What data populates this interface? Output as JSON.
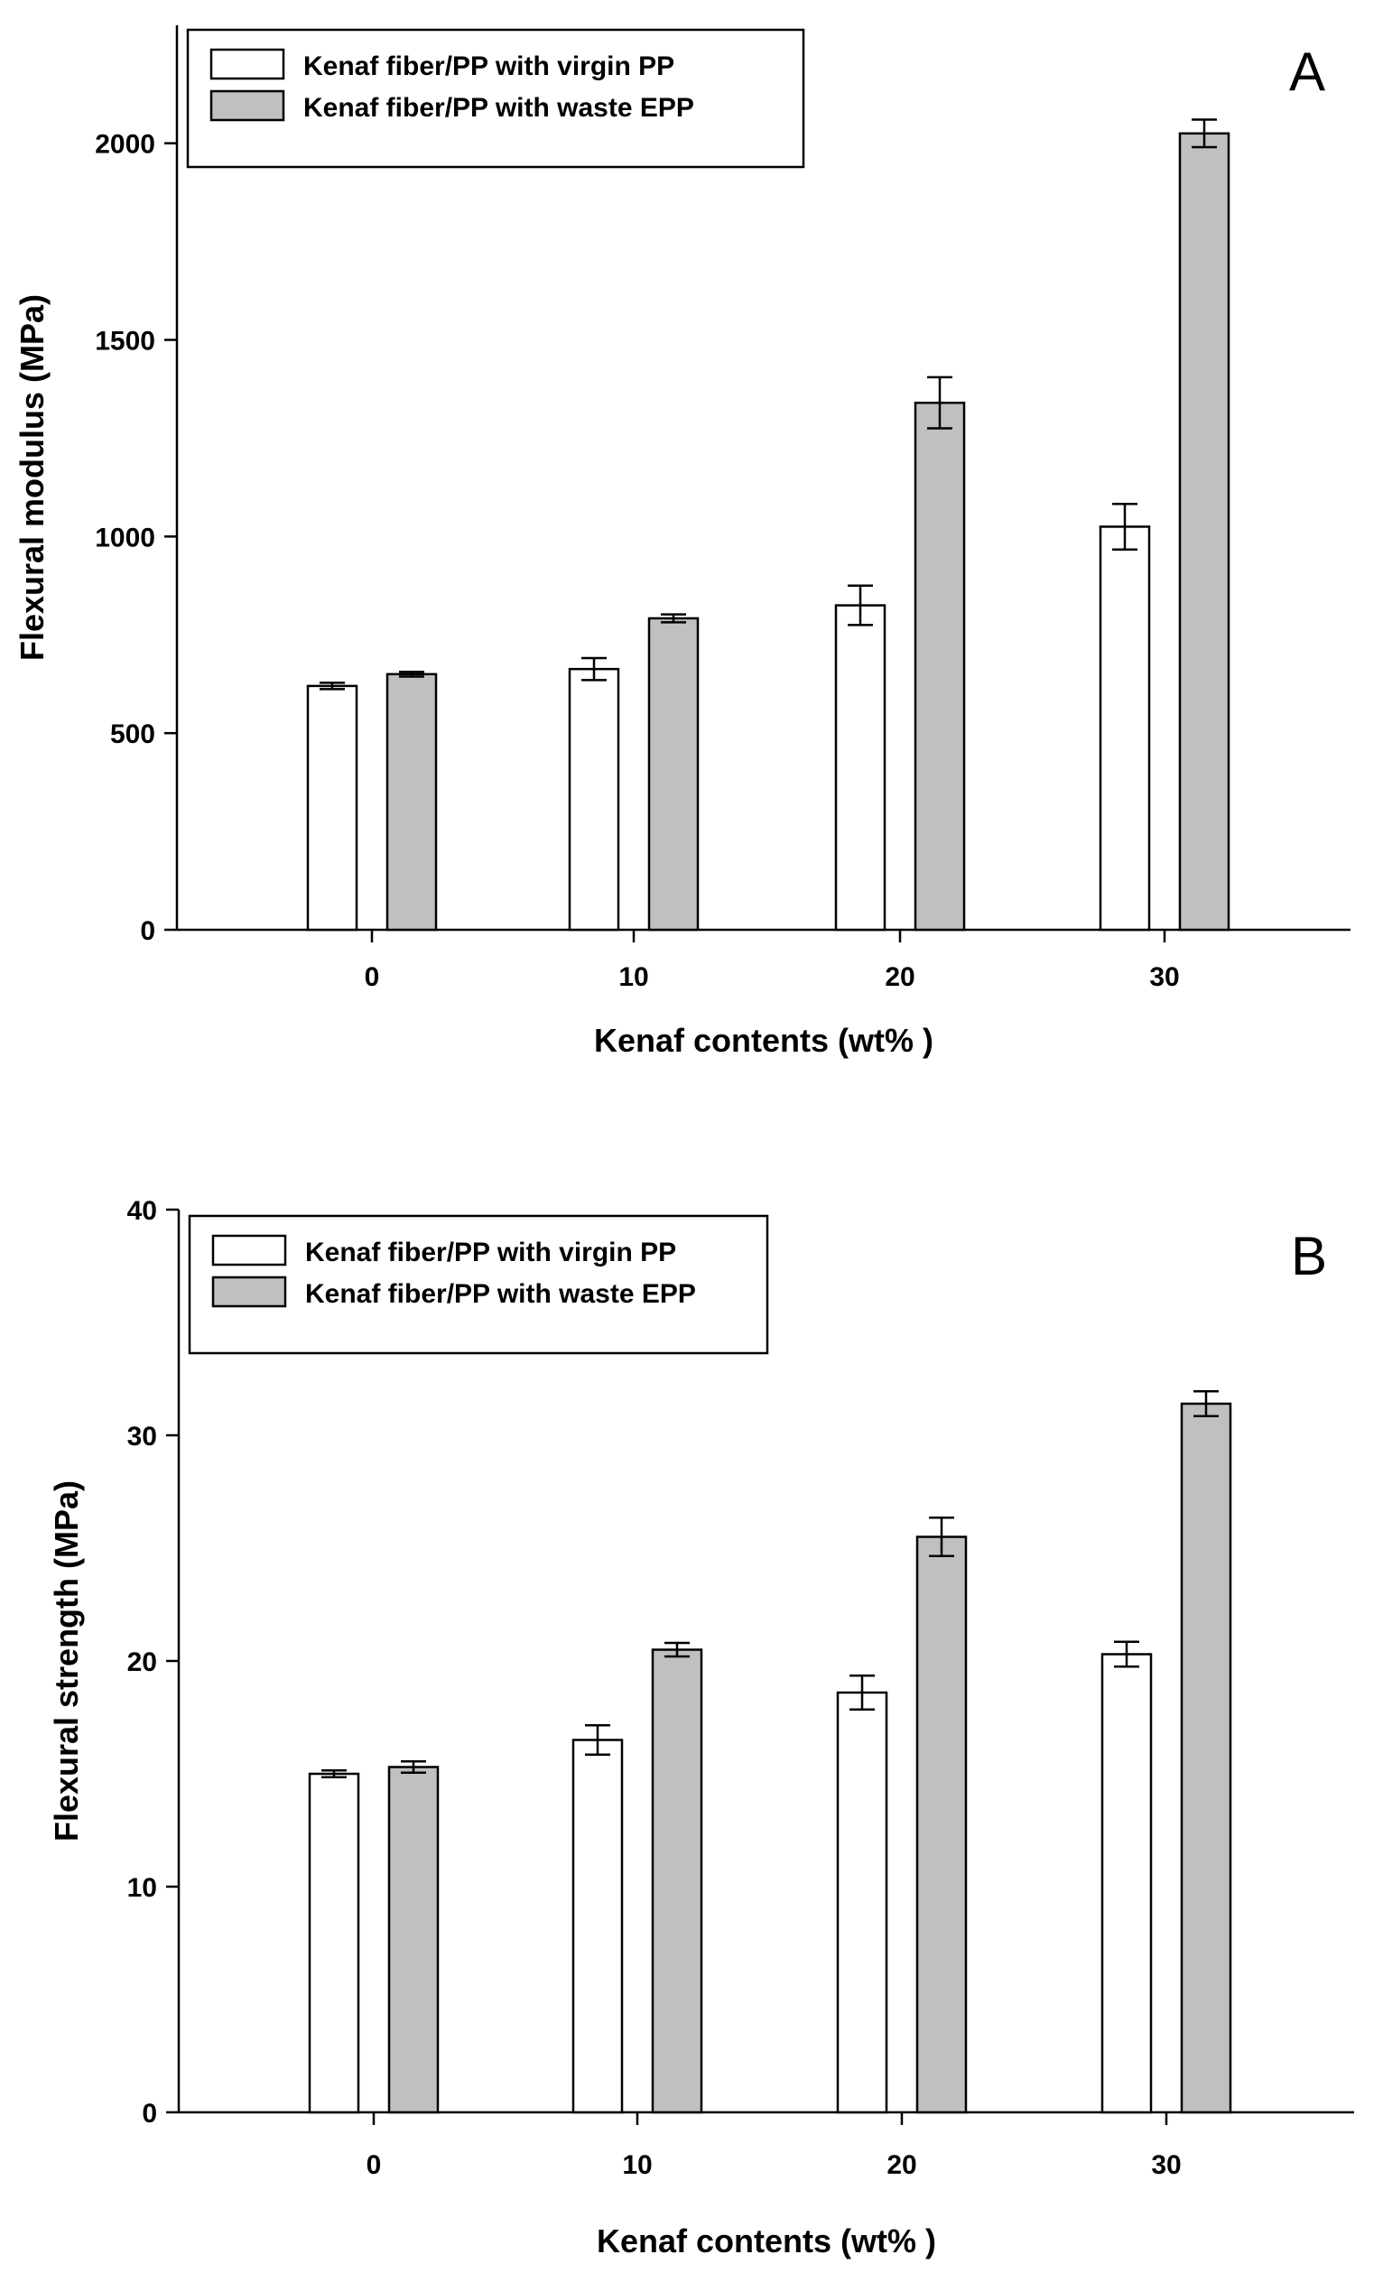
{
  "chart_data": [
    {
      "type": "bar",
      "panel_label": "A",
      "categories": [
        "0",
        "10",
        "20",
        "30"
      ],
      "xlabel": "Kenaf contents (wt% )",
      "ylabel": "Flexural modulus (MPa)",
      "ylim": [
        0,
        2300
      ],
      "yticks": [
        "0",
        "500",
        "1000",
        "1500",
        "2000"
      ],
      "ytick_values": [
        0,
        500,
        1000,
        1500,
        2000
      ],
      "legend_position": "top-left",
      "series": [
        {
          "name": "Kenaf fiber/PP with virgin PP",
          "color": "#ffffff",
          "values": [
            620,
            663,
            825,
            1025
          ],
          "errors": [
            8,
            28,
            50,
            58
          ]
        },
        {
          "name": "Kenaf fiber/PP with waste EPP",
          "color": "#c0c0c0",
          "values": [
            650,
            792,
            1340,
            2025
          ],
          "errors": [
            6,
            10,
            65,
            35
          ]
        }
      ]
    },
    {
      "type": "bar",
      "panel_label": "B",
      "categories": [
        "0",
        "10",
        "20",
        "30"
      ],
      "xlabel": "Kenaf contents (wt% )",
      "ylabel": "Flexural strength (MPa)",
      "ylim": [
        0,
        40
      ],
      "yticks": [
        "0",
        "10",
        "20",
        "30",
        "40"
      ],
      "ytick_values": [
        0,
        10,
        20,
        30,
        40
      ],
      "legend_position": "top-left",
      "series": [
        {
          "name": "Kenaf fiber/PP with virgin PP",
          "color": "#ffffff",
          "values": [
            15.0,
            16.5,
            18.6,
            20.3
          ],
          "errors": [
            0.15,
            0.65,
            0.75,
            0.55
          ]
        },
        {
          "name": "Kenaf fiber/PP with waste EPP",
          "color": "#c0c0c0",
          "values": [
            15.3,
            20.5,
            25.5,
            31.4
          ],
          "errors": [
            0.25,
            0.3,
            0.85,
            0.55
          ]
        }
      ]
    }
  ]
}
